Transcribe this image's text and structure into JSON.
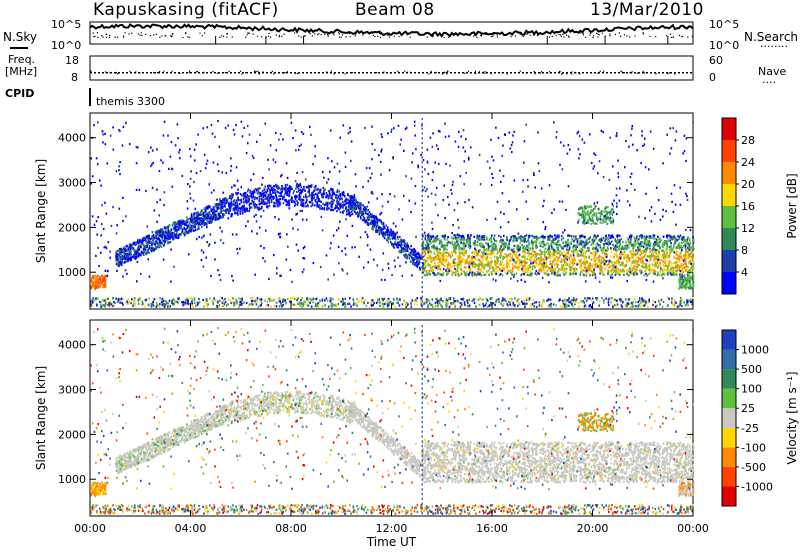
{
  "header": {
    "station": "Kapuskasing (fitACF)",
    "beam": "Beam 08",
    "date": "13/Mar/2010"
  },
  "noise_panel": {
    "left_label": "N.Sky",
    "left_ticks": [
      "10^5",
      "10^0"
    ],
    "right_ticks": [
      "10^5",
      "10^0"
    ],
    "right_label": "N.Search",
    "right_legend": "........"
  },
  "freq_panel": {
    "left_label_1": "Freq.",
    "left_label_2": "[MHz]",
    "left_ticks": [
      "18",
      "8"
    ],
    "right_ticks": [
      "60",
      "0"
    ],
    "right_label": "Nave",
    "right_legend": "....",
    "frequency_level_mhz": 11,
    "nave_level": 20
  },
  "cpid_panel": {
    "label": "CPID",
    "program": "themis 3300"
  },
  "chart_data": [
    {
      "type": "heatmap",
      "parameter": "power",
      "xlabel": "",
      "ylabel": "Slant Range [km]",
      "x_ticks": [
        "00:00",
        "04:00",
        "08:00",
        "12:00",
        "16:00",
        "20:00",
        "00:00"
      ],
      "y_ticks": [
        1000,
        2000,
        3000,
        4000
      ],
      "xlim_hours": [
        0,
        24
      ],
      "ylim_km": [
        180,
        4550
      ],
      "colorbar": {
        "label": "Power [dB]",
        "ticks": [
          "4",
          "8",
          "12",
          "16",
          "20",
          "24",
          "28"
        ],
        "colors": [
          "#0000ff",
          "#1e3fa8",
          "#2e8b57",
          "#5fbf3f",
          "#ffd700",
          "#ff8c00",
          "#ff4500",
          "#e00000"
        ]
      }
    },
    {
      "type": "heatmap",
      "parameter": "velocity",
      "xlabel": "Time UT",
      "ylabel": "Slant Range [km]",
      "x_ticks": [
        "00:00",
        "04:00",
        "08:00",
        "12:00",
        "16:00",
        "20:00",
        "00:00"
      ],
      "y_ticks": [
        1000,
        2000,
        3000,
        4000
      ],
      "xlim_hours": [
        0,
        24
      ],
      "ylim_km": [
        180,
        4550
      ],
      "colorbar": {
        "label": "Velocity [m s⁻¹]",
        "ticks": [
          "1000",
          "500",
          "100",
          "25",
          "-25",
          "-100",
          "-500",
          "-1000"
        ],
        "colors": [
          "#1f3fbf",
          "#2f6ea8",
          "#2e8b57",
          "#5fbf3f",
          "#c8c8c0",
          "#ffd700",
          "#ff8c00",
          "#ff4500",
          "#e00000"
        ]
      }
    }
  ]
}
